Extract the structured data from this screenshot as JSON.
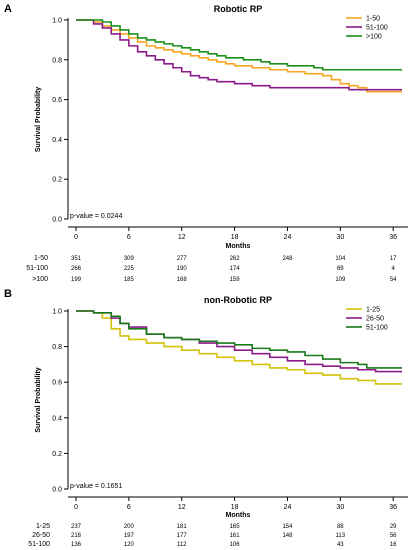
{
  "chart_data": [
    {
      "type": "line",
      "panel_label": "A",
      "title": "Robotic RP",
      "xlabel": "Months",
      "ylabel": "Survival Probability",
      "xlim": [
        0,
        37
      ],
      "ylim": [
        0,
        1.0
      ],
      "x_ticks": [
        0,
        6,
        12,
        18,
        24,
        30,
        36
      ],
      "y_ticks": [
        0.0,
        0.2,
        0.4,
        0.6,
        0.8,
        1.0
      ],
      "y_tick_labels": [
        "0.0",
        "0.2",
        "0.4",
        "0.6",
        "0.8",
        "1.0"
      ],
      "p_value": "p-value = 0.0244",
      "legend_position": "top-right",
      "series": [
        {
          "name": "1-50",
          "color": "#f5a623",
          "points": [
            [
              0,
              1.0
            ],
            [
              2,
              0.99
            ],
            [
              3,
              0.97
            ],
            [
              4,
              0.95
            ],
            [
              5,
              0.93
            ],
            [
              6,
              0.91
            ],
            [
              7,
              0.89
            ],
            [
              8,
              0.87
            ],
            [
              9,
              0.86
            ],
            [
              10,
              0.85
            ],
            [
              11,
              0.84
            ],
            [
              12,
              0.83
            ],
            [
              13,
              0.82
            ],
            [
              14,
              0.81
            ],
            [
              15,
              0.8
            ],
            [
              16,
              0.79
            ],
            [
              17,
              0.78
            ],
            [
              18,
              0.77
            ],
            [
              20,
              0.76
            ],
            [
              22,
              0.75
            ],
            [
              24,
              0.74
            ],
            [
              26,
              0.73
            ],
            [
              28,
              0.72
            ],
            [
              29,
              0.7
            ],
            [
              30,
              0.68
            ],
            [
              31,
              0.67
            ],
            [
              32,
              0.66
            ],
            [
              33,
              0.64
            ],
            [
              37,
              0.64
            ]
          ]
        },
        {
          "name": "51-100",
          "color": "#8b1a8b",
          "points": [
            [
              0,
              1.0
            ],
            [
              2,
              0.98
            ],
            [
              3,
              0.96
            ],
            [
              4,
              0.93
            ],
            [
              5,
              0.9
            ],
            [
              6,
              0.87
            ],
            [
              7,
              0.84
            ],
            [
              8,
              0.82
            ],
            [
              9,
              0.8
            ],
            [
              10,
              0.78
            ],
            [
              11,
              0.76
            ],
            [
              12,
              0.74
            ],
            [
              13,
              0.72
            ],
            [
              14,
              0.71
            ],
            [
              15,
              0.7
            ],
            [
              16,
              0.69
            ],
            [
              18,
              0.68
            ],
            [
              20,
              0.67
            ],
            [
              22,
              0.66
            ],
            [
              24,
              0.66
            ],
            [
              30,
              0.66
            ],
            [
              31,
              0.65
            ],
            [
              37,
              0.65
            ]
          ]
        },
        {
          "name": ">100",
          "color": "#1a8f1a",
          "points": [
            [
              0,
              1.0
            ],
            [
              3,
              0.99
            ],
            [
              4,
              0.97
            ],
            [
              5,
              0.95
            ],
            [
              6,
              0.93
            ],
            [
              7,
              0.91
            ],
            [
              8,
              0.9
            ],
            [
              9,
              0.89
            ],
            [
              10,
              0.88
            ],
            [
              11,
              0.87
            ],
            [
              12,
              0.86
            ],
            [
              13,
              0.85
            ],
            [
              14,
              0.84
            ],
            [
              15,
              0.83
            ],
            [
              16,
              0.82
            ],
            [
              17,
              0.81
            ],
            [
              18,
              0.81
            ],
            [
              19,
              0.8
            ],
            [
              21,
              0.79
            ],
            [
              22,
              0.78
            ],
            [
              24,
              0.77
            ],
            [
              27,
              0.76
            ],
            [
              28,
              0.75
            ],
            [
              30,
              0.75
            ],
            [
              31,
              0.75
            ],
            [
              37,
              0.75
            ]
          ]
        }
      ],
      "at_risk": [
        {
          "label": "1-50",
          "values": [
            "351",
            "309",
            "277",
            "262",
            "248",
            "104",
            "17"
          ]
        },
        {
          "label": "51-100",
          "values": [
            "266",
            "225",
            "190",
            "174",
            "",
            "69",
            "4"
          ]
        },
        {
          "label": ">100",
          "values": [
            "199",
            "185",
            "168",
            "159",
            "",
            "109",
            "54"
          ]
        }
      ]
    },
    {
      "type": "line",
      "panel_label": "B",
      "title": "non-Robotic RP",
      "xlabel": "Months",
      "ylabel": "Survival Probability",
      "xlim": [
        0,
        37
      ],
      "ylim": [
        0,
        1.0
      ],
      "x_ticks": [
        0,
        6,
        12,
        18,
        24,
        30,
        36
      ],
      "y_ticks": [
        0.0,
        0.2,
        0.4,
        0.6,
        0.8,
        1.0
      ],
      "y_tick_labels": [
        "0.0",
        "0.2",
        "0.4",
        "0.6",
        "0.8",
        "1.0"
      ],
      "p_value": "p-value = 0.1651",
      "legend_position": "top-right",
      "series": [
        {
          "name": "1-25",
          "color": "#d4c20a",
          "points": [
            [
              0,
              1.0
            ],
            [
              2,
              0.99
            ],
            [
              3,
              0.96
            ],
            [
              4,
              0.9
            ],
            [
              5,
              0.86
            ],
            [
              6,
              0.84
            ],
            [
              8,
              0.82
            ],
            [
              10,
              0.8
            ],
            [
              12,
              0.78
            ],
            [
              14,
              0.76
            ],
            [
              16,
              0.74
            ],
            [
              18,
              0.72
            ],
            [
              20,
              0.7
            ],
            [
              22,
              0.68
            ],
            [
              24,
              0.67
            ],
            [
              26,
              0.65
            ],
            [
              28,
              0.64
            ],
            [
              30,
              0.62
            ],
            [
              32,
              0.61
            ],
            [
              34,
              0.59
            ],
            [
              37,
              0.59
            ]
          ]
        },
        {
          "name": "26-50",
          "color": "#8b1a8b",
          "points": [
            [
              0,
              1.0
            ],
            [
              2,
              0.99
            ],
            [
              4,
              0.96
            ],
            [
              5,
              0.93
            ],
            [
              6,
              0.91
            ],
            [
              8,
              0.87
            ],
            [
              10,
              0.85
            ],
            [
              12,
              0.84
            ],
            [
              14,
              0.82
            ],
            [
              16,
              0.8
            ],
            [
              18,
              0.78
            ],
            [
              20,
              0.76
            ],
            [
              22,
              0.74
            ],
            [
              24,
              0.72
            ],
            [
              26,
              0.7
            ],
            [
              28,
              0.69
            ],
            [
              30,
              0.68
            ],
            [
              32,
              0.67
            ],
            [
              34,
              0.66
            ],
            [
              37,
              0.66
            ]
          ]
        },
        {
          "name": "51-100",
          "color": "#1a7a1a",
          "points": [
            [
              0,
              1.0
            ],
            [
              2,
              0.99
            ],
            [
              4,
              0.97
            ],
            [
              5,
              0.93
            ],
            [
              6,
              0.9
            ],
            [
              8,
              0.87
            ],
            [
              10,
              0.85
            ],
            [
              12,
              0.84
            ],
            [
              14,
              0.83
            ],
            [
              16,
              0.82
            ],
            [
              18,
              0.81
            ],
            [
              20,
              0.79
            ],
            [
              22,
              0.78
            ],
            [
              24,
              0.77
            ],
            [
              26,
              0.75
            ],
            [
              28,
              0.73
            ],
            [
              30,
              0.71
            ],
            [
              32,
              0.7
            ],
            [
              33,
              0.68
            ],
            [
              37,
              0.68
            ]
          ]
        }
      ],
      "at_risk": [
        {
          "label": "1-25",
          "values": [
            "237",
            "200",
            "181",
            "165",
            "154",
            "88",
            "29"
          ]
        },
        {
          "label": "26-50",
          "values": [
            "218",
            "197",
            "177",
            "161",
            "148",
            "113",
            "56"
          ]
        },
        {
          "label": "51-100",
          "values": [
            "136",
            "120",
            "112",
            "106",
            "",
            "43",
            "16"
          ]
        }
      ]
    }
  ]
}
